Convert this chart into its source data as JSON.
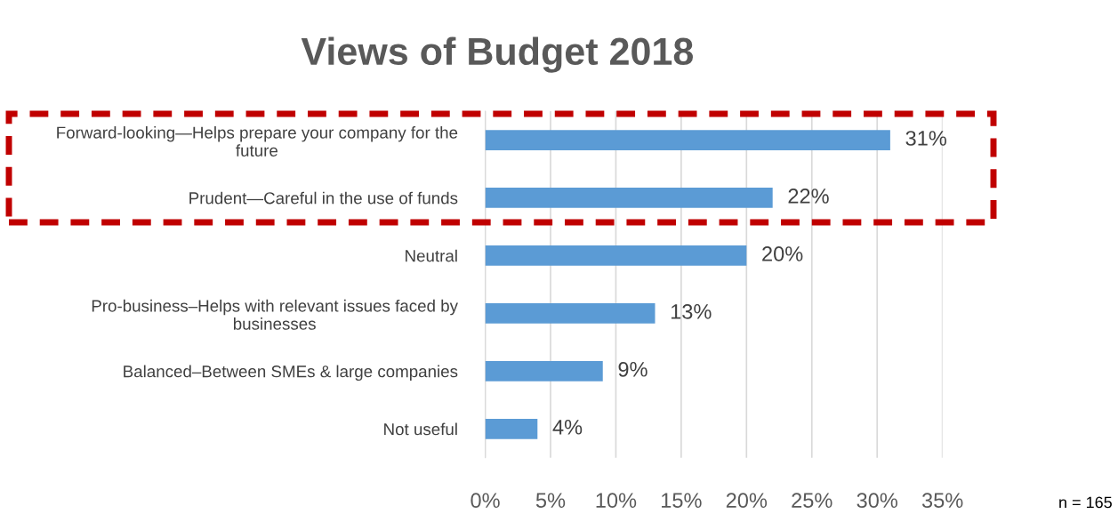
{
  "chart_data": {
    "type": "bar",
    "orientation": "horizontal",
    "title": "Views of Budget 2018",
    "categories": [
      "Forward-looking—Helps prepare your company for the future",
      "Prudent—Careful in the use of funds",
      "Neutral",
      "Pro-business–Helps with relevant issues faced by businesses",
      "Balanced–Between SMEs & large companies",
      "Not useful"
    ],
    "values": [
      31,
      22,
      20,
      13,
      9,
      4
    ],
    "color": "#5b9bd5",
    "value_labels": [
      "31%",
      "22%",
      "20%",
      "13%",
      "9%",
      "4%"
    ],
    "xlim": [
      0,
      35
    ],
    "xticks": [
      {
        "value": 0,
        "label": "0%"
      },
      {
        "value": 5,
        "label": "5%"
      },
      {
        "value": 10,
        "label": "10%"
      },
      {
        "value": 15,
        "label": "15%"
      },
      {
        "value": 20,
        "label": "20%"
      },
      {
        "value": 25,
        "label": "25%"
      },
      {
        "value": 30,
        "label": "30%"
      },
      {
        "value": 35,
        "label": "35%"
      }
    ],
    "grid": "x",
    "legend": false,
    "annotations": [
      "n = 165"
    ]
  }
}
